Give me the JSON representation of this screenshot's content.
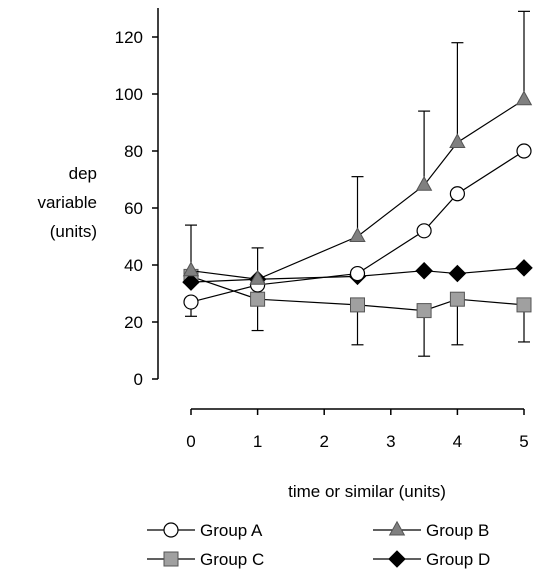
{
  "chart_data": {
    "type": "line",
    "title": "",
    "xlabel": "time or similar (units)",
    "ylabel_lines": [
      "dep",
      "variable",
      "(units)"
    ],
    "xlim": [
      0,
      5
    ],
    "ylim": [
      0,
      130
    ],
    "xticks": [
      0,
      1,
      2,
      3,
      4,
      5
    ],
    "yticks": [
      0,
      20,
      40,
      60,
      80,
      100,
      120
    ],
    "grid": false,
    "legend_position": "bottom",
    "series": [
      {
        "name": "Group A",
        "marker": "open-circle",
        "color": "#000000",
        "fill": "#ffffff",
        "x": [
          0,
          1,
          2.5,
          3.5,
          4,
          5
        ],
        "y": [
          27,
          33,
          37,
          52,
          65,
          80
        ],
        "error_minus": [
          5,
          0,
          0,
          0,
          0,
          0
        ],
        "error_plus": [
          0,
          0,
          0,
          0,
          0,
          0
        ]
      },
      {
        "name": "Group B",
        "marker": "triangle",
        "color": "#000000",
        "fill": "#808080",
        "x": [
          0,
          1,
          2.5,
          3.5,
          4,
          5
        ],
        "y": [
          38,
          35,
          50,
          68,
          83,
          98
        ],
        "error_minus": [
          0,
          0,
          0,
          0,
          0,
          0
        ],
        "error_plus": [
          16,
          11,
          21,
          26,
          35,
          31
        ]
      },
      {
        "name": "Group C",
        "marker": "square",
        "color": "#000000",
        "fill": "#a0a0a0",
        "x": [
          0,
          1,
          2.5,
          3.5,
          4,
          5
        ],
        "y": [
          36,
          28,
          26,
          24,
          28,
          26
        ],
        "error_minus": [
          0,
          11,
          14,
          16,
          16,
          13
        ],
        "error_plus": [
          0,
          0,
          0,
          0,
          0,
          0
        ]
      },
      {
        "name": "Group D",
        "marker": "diamond",
        "color": "#000000",
        "fill": "#000000",
        "x": [
          0,
          1,
          2.5,
          3.5,
          4,
          5
        ],
        "y": [
          34,
          35,
          36,
          38,
          37,
          39
        ],
        "error_minus": [
          0,
          0,
          0,
          0,
          0,
          0
        ],
        "error_plus": [
          0,
          0,
          0,
          0,
          0,
          0
        ]
      }
    ]
  }
}
